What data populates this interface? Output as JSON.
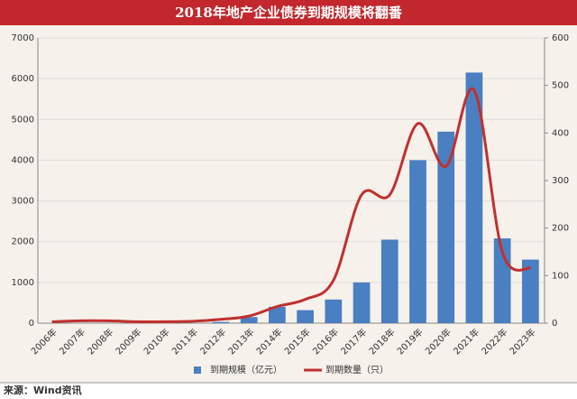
{
  "chart_data": {
    "type": "bar_line",
    "title": "2018年地产企业债券到期规模将翻番",
    "categories": [
      "2006年",
      "2007年",
      "2008年",
      "2009年",
      "2010年",
      "2011年",
      "2012年",
      "2013年",
      "2014年",
      "2015年",
      "2016年",
      "2017年",
      "2018年",
      "2019年",
      "2020年",
      "2021年",
      "2022年",
      "2023年"
    ],
    "series": [
      {
        "name": "到期规模（亿元）",
        "color": "#4a7fc1",
        "type": "bar",
        "values": [
          0,
          0,
          0,
          0,
          0,
          0,
          30,
          150,
          400,
          320,
          580,
          1000,
          2050,
          4000,
          4700,
          6150,
          2080,
          1560
        ]
      },
      {
        "name": "到期数量（只）",
        "color": "#c0302f",
        "type": "line",
        "axis": "y2",
        "values": [
          3,
          5,
          5,
          3,
          3,
          4,
          8,
          15,
          35,
          50,
          90,
          270,
          270,
          420,
          330,
          490,
          150,
          115
        ]
      }
    ],
    "ylim": [
      0,
      7000
    ],
    "yticks": [
      0,
      1000,
      2000,
      3000,
      4000,
      5000,
      6000,
      7000
    ],
    "y2lim": [
      0,
      600
    ],
    "y2ticks": [
      0,
      100,
      200,
      300,
      400,
      500,
      600
    ],
    "grid": true,
    "source": "来源：Wind资讯"
  }
}
